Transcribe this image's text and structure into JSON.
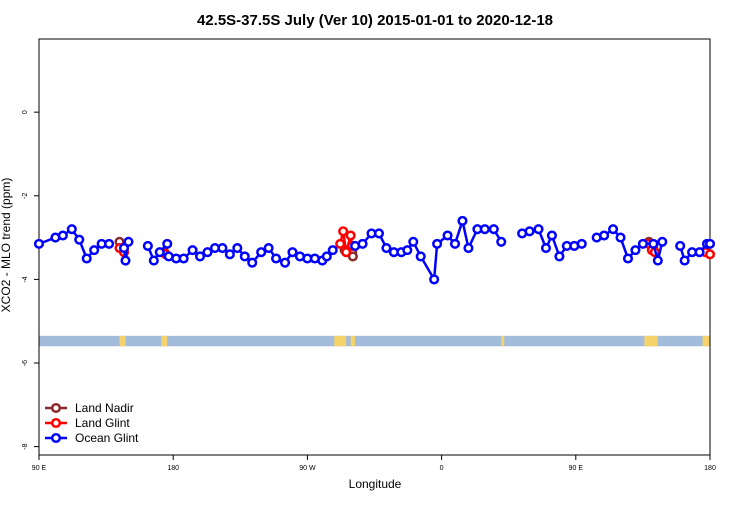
{
  "chart_data": {
    "type": "line",
    "title": "42.5S-37.5S July (Ver 10)   2015-01-01 to 2020-12-18",
    "xlabel": "Longitude",
    "ylabel": "XCO2 - MLO trend (ppm)",
    "x_ticks": [
      {
        "value": 90,
        "label": "90 E"
      },
      {
        "value": 180,
        "label": "180"
      },
      {
        "value": 270,
        "label": "90 W"
      },
      {
        "value": 360,
        "label": "0"
      },
      {
        "value": 450,
        "label": "90 E"
      },
      {
        "value": 540,
        "label": "180"
      }
    ],
    "y_ticks": [
      {
        "value": 0,
        "label": "0"
      },
      {
        "value": -2,
        "label": "-2"
      },
      {
        "value": -4,
        "label": "-4"
      },
      {
        "value": -6,
        "label": "-6"
      },
      {
        "value": -8,
        "label": "-8"
      }
    ],
    "xlim": [
      90,
      540
    ],
    "ylim": [
      -8.2,
      1.75
    ],
    "grid": false,
    "legend_position": "bottom-left",
    "land_bar": {
      "y_top": -5.35,
      "y_bottom": -5.6,
      "ocean_color": "#a4bcdc",
      "land_color": "#f5d36b",
      "land_ranges": [
        [
          144,
          148
        ],
        [
          172,
          176
        ],
        [
          288,
          296
        ],
        [
          299,
          302
        ],
        [
          400,
          402
        ],
        [
          496,
          505
        ],
        [
          535,
          540
        ]
      ]
    },
    "series": [
      {
        "name": "Land Nadir",
        "color": "#8b2a2a",
        "segments": [
          [
            [
              144,
              -3.1
            ],
            [
              147,
              -3.25
            ]
          ],
          [
            [
              295,
              -3.3
            ],
            [
              300,
              -3.35
            ],
            [
              300.5,
              -3.45
            ]
          ],
          [
            [
              499,
              -3.1
            ],
            [
              502,
              -3.25
            ]
          ]
        ]
      },
      {
        "name": "Land Glint",
        "color": "#ff0000",
        "segments": [
          [
            [
              144,
              -3.25
            ],
            [
              147,
              -3.35
            ]
          ],
          [
            [
              174,
              -3.35
            ],
            [
              175,
              -3.4
            ]
          ],
          [
            [
              292,
              -3.15
            ],
            [
              294,
              -2.85
            ],
            [
              296,
              -3.35
            ],
            [
              299,
              -2.95
            ],
            [
              300,
              -3.2
            ]
          ],
          [
            [
              499,
              -3.15
            ],
            [
              501,
              -3.3
            ],
            [
              503,
              -3.35
            ]
          ],
          [
            [
              537,
              -3.35
            ],
            [
              540,
              -3.4
            ]
          ]
        ]
      },
      {
        "name": "Ocean Glint",
        "color": "#0000ff",
        "segments": [
          [
            [
              90,
              -3.15
            ],
            [
              101,
              -3.0
            ],
            [
              106,
              -2.95
            ],
            [
              112,
              -2.8
            ],
            [
              117,
              -3.05
            ],
            [
              122,
              -3.5
            ],
            [
              127,
              -3.3
            ],
            [
              132,
              -3.15
            ],
            [
              137,
              -3.15
            ]
          ],
          [
            [
              147,
              -3.25
            ],
            [
              148,
              -3.55
            ],
            [
              150,
              -3.1
            ]
          ],
          [
            [
              163,
              -3.2
            ],
            [
              167,
              -3.55
            ],
            [
              171,
              -3.35
            ],
            [
              176,
              -3.15
            ]
          ],
          [
            [
              177,
              -3.45
            ],
            [
              182,
              -3.5
            ],
            [
              187,
              -3.5
            ],
            [
              193,
              -3.3
            ],
            [
              198,
              -3.45
            ],
            [
              203,
              -3.35
            ],
            [
              208,
              -3.25
            ],
            [
              213,
              -3.25
            ],
            [
              218,
              -3.4
            ],
            [
              223,
              -3.25
            ],
            [
              228,
              -3.45
            ],
            [
              233,
              -3.6
            ],
            [
              239,
              -3.35
            ],
            [
              244,
              -3.25
            ],
            [
              249,
              -3.5
            ],
            [
              255,
              -3.6
            ],
            [
              260,
              -3.35
            ],
            [
              265,
              -3.45
            ],
            [
              270,
              -3.5
            ],
            [
              275,
              -3.5
            ],
            [
              280,
              -3.55
            ],
            [
              283,
              -3.45
            ],
            [
              287,
              -3.3
            ]
          ],
          [
            [
              302,
              -3.2
            ],
            [
              307,
              -3.15
            ],
            [
              313,
              -2.9
            ],
            [
              318,
              -2.9
            ],
            [
              323,
              -3.25
            ],
            [
              328,
              -3.35
            ],
            [
              333,
              -3.35
            ],
            [
              337,
              -3.3
            ],
            [
              341,
              -3.1
            ],
            [
              346,
              -3.45
            ],
            [
              355,
              -4.0
            ],
            [
              357,
              -3.15
            ],
            [
              364,
              -2.95
            ],
            [
              369,
              -3.15
            ],
            [
              374,
              -2.6
            ],
            [
              378,
              -3.25
            ],
            [
              384,
              -2.8
            ],
            [
              389,
              -2.8
            ],
            [
              395,
              -2.8
            ],
            [
              400,
              -3.1
            ]
          ],
          [
            [
              414,
              -2.9
            ],
            [
              419,
              -2.85
            ],
            [
              425,
              -2.8
            ],
            [
              430,
              -3.25
            ],
            [
              434,
              -2.95
            ],
            [
              439,
              -3.45
            ],
            [
              444,
              -3.2
            ],
            [
              449,
              -3.2
            ],
            [
              454,
              -3.15
            ]
          ],
          [
            [
              464,
              -3.0
            ],
            [
              469,
              -2.95
            ],
            [
              475,
              -2.8
            ],
            [
              480,
              -3.0
            ],
            [
              485,
              -3.5
            ],
            [
              490,
              -3.3
            ],
            [
              495,
              -3.15
            ],
            [
              502,
              -3.15
            ],
            [
              505,
              -3.55
            ],
            [
              508,
              -3.1
            ]
          ],
          [
            [
              520,
              -3.2
            ],
            [
              523,
              -3.55
            ],
            [
              528,
              -3.35
            ],
            [
              533,
              -3.35
            ],
            [
              538,
              -3.15
            ],
            [
              540,
              -3.15
            ]
          ]
        ]
      }
    ]
  }
}
